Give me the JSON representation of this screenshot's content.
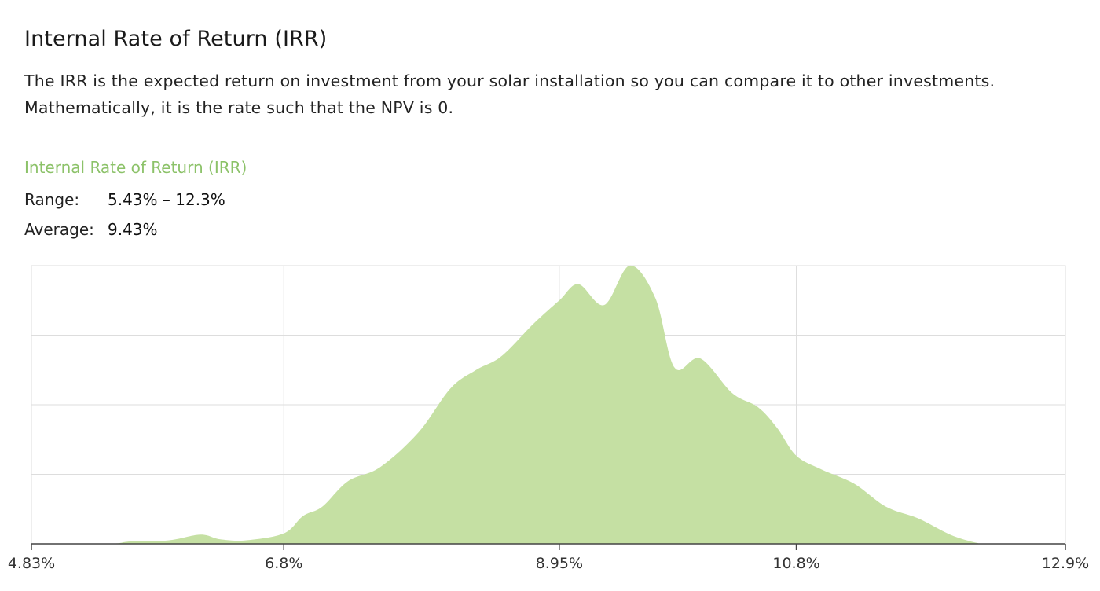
{
  "header": {
    "title": "Internal Rate of Return (IRR)",
    "description_line1": "The IRR is the expected return on investment from your solar installation so you can compare it to other investments.",
    "description_line2": "Mathematically, it is the rate such that the NPV is 0."
  },
  "metric": {
    "title": "Internal Rate of Return (IRR)",
    "range_label": "Range:",
    "range_value": "5.43% – 12.3%",
    "average_label": "Average:",
    "average_value": "9.43%"
  },
  "colors": {
    "accent": "#8cc269",
    "area_fill": "#c5e0a3",
    "grid": "#dddddd",
    "axis": "#444444"
  },
  "chart_data": {
    "type": "area",
    "title": "",
    "xlabel": "",
    "ylabel": "",
    "xlim": [
      4.83,
      12.9
    ],
    "ylim": [
      0,
      1.2
    ],
    "x_ticks": [
      4.83,
      6.8,
      8.95,
      10.8,
      12.9
    ],
    "x_tick_labels": [
      "4.83%",
      "6.8%",
      "8.95%",
      "10.8%",
      "12.9%"
    ],
    "grid": true,
    "series": [
      {
        "x": [
          4.83,
          5.43,
          5.6,
          5.9,
          6.15,
          6.3,
          6.5,
          6.8,
          6.95,
          7.1,
          7.3,
          7.55,
          7.85,
          8.1,
          8.3,
          8.5,
          8.75,
          8.95,
          9.1,
          9.3,
          9.5,
          9.7,
          9.85,
          10.05,
          10.3,
          10.5,
          10.65,
          10.8,
          11.0,
          11.25,
          11.5,
          11.75,
          12.0,
          12.2,
          12.3,
          12.9
        ],
        "y": [
          0.0,
          0.0,
          0.01,
          0.015,
          0.04,
          0.02,
          0.015,
          0.045,
          0.12,
          0.16,
          0.27,
          0.33,
          0.48,
          0.67,
          0.75,
          0.81,
          0.95,
          1.05,
          1.12,
          1.03,
          1.2,
          1.06,
          0.76,
          0.8,
          0.65,
          0.59,
          0.5,
          0.38,
          0.32,
          0.26,
          0.16,
          0.11,
          0.04,
          0.005,
          0.0,
          0.0
        ]
      }
    ]
  }
}
